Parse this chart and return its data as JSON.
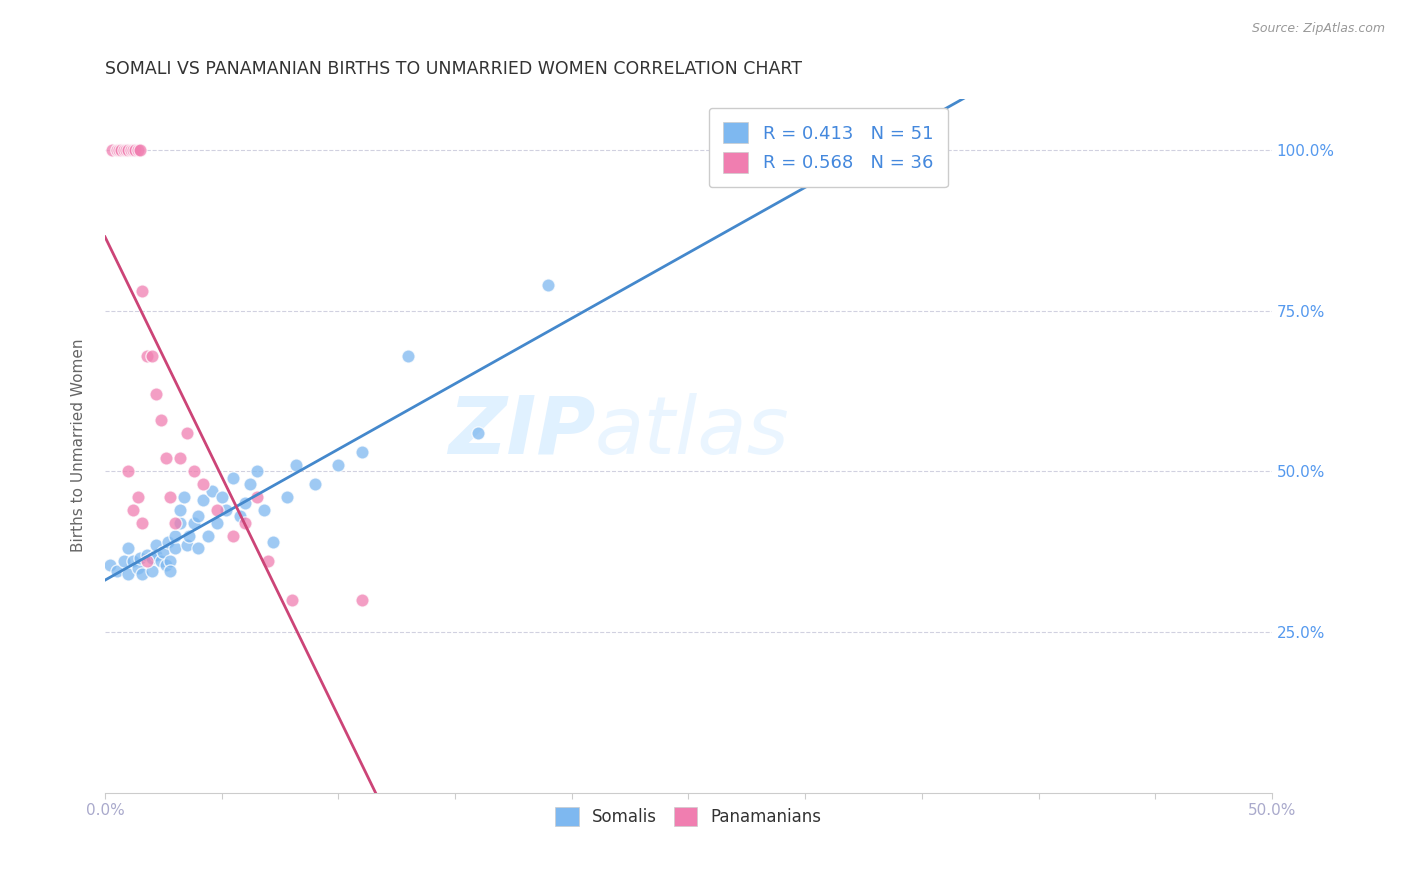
{
  "title": "SOMALI VS PANAMANIAN BIRTHS TO UNMARRIED WOMEN CORRELATION CHART",
  "source": "Source: ZipAtlas.com",
  "ylabel": "Births to Unmarried Women",
  "x_lim": [
    0.0,
    0.5
  ],
  "y_lim": [
    0.0,
    1.08
  ],
  "watermark_top": "ZIP",
  "watermark_bottom": "atlas",
  "somali_x": [
    0.002,
    0.005,
    0.008,
    0.01,
    0.01,
    0.012,
    0.014,
    0.015,
    0.016,
    0.018,
    0.02,
    0.02,
    0.022,
    0.022,
    0.024,
    0.025,
    0.026,
    0.027,
    0.028,
    0.028,
    0.03,
    0.03,
    0.032,
    0.032,
    0.034,
    0.035,
    0.036,
    0.038,
    0.04,
    0.04,
    0.042,
    0.044,
    0.046,
    0.048,
    0.05,
    0.052,
    0.055,
    0.058,
    0.06,
    0.062,
    0.065,
    0.068,
    0.072,
    0.078,
    0.082,
    0.09,
    0.1,
    0.11,
    0.13,
    0.16,
    0.19
  ],
  "somali_y": [
    0.355,
    0.345,
    0.36,
    0.34,
    0.38,
    0.36,
    0.35,
    0.365,
    0.34,
    0.37,
    0.345,
    0.365,
    0.37,
    0.385,
    0.36,
    0.375,
    0.355,
    0.39,
    0.36,
    0.345,
    0.38,
    0.4,
    0.42,
    0.44,
    0.46,
    0.385,
    0.4,
    0.42,
    0.38,
    0.43,
    0.455,
    0.4,
    0.47,
    0.42,
    0.46,
    0.44,
    0.49,
    0.43,
    0.45,
    0.48,
    0.5,
    0.44,
    0.39,
    0.46,
    0.51,
    0.48,
    0.51,
    0.53,
    0.68,
    0.56,
    0.79
  ],
  "panamanian_x": [
    0.003,
    0.005,
    0.006,
    0.007,
    0.008,
    0.009,
    0.01,
    0.011,
    0.012,
    0.013,
    0.014,
    0.015,
    0.016,
    0.018,
    0.02,
    0.022,
    0.024,
    0.026,
    0.028,
    0.03,
    0.032,
    0.035,
    0.038,
    0.042,
    0.048,
    0.055,
    0.06,
    0.065,
    0.07,
    0.08,
    0.01,
    0.012,
    0.014,
    0.016,
    0.018,
    0.11
  ],
  "panamanian_y": [
    1.0,
    1.0,
    1.0,
    1.0,
    1.0,
    1.0,
    1.0,
    1.0,
    1.0,
    1.0,
    1.0,
    1.0,
    0.78,
    0.68,
    0.68,
    0.62,
    0.58,
    0.52,
    0.46,
    0.42,
    0.52,
    0.56,
    0.5,
    0.48,
    0.44,
    0.4,
    0.42,
    0.46,
    0.36,
    0.3,
    0.5,
    0.44,
    0.46,
    0.42,
    0.36,
    0.3
  ],
  "somali_color": "#7eb8f0",
  "panamanian_color": "#f07eb0",
  "somali_line_color": "#4488cc",
  "panamanian_line_color": "#cc4477",
  "grid_color": "#ccccdd",
  "background_color": "#ffffff",
  "title_color": "#333333",
  "axis_label_color": "#666666",
  "x_tick_color": "#aaaacc",
  "right_tick_color": "#5599ee",
  "watermark_color": "#cce8ff",
  "legend_r_n_color": "#4488dd",
  "legend_text_color": "#333333"
}
